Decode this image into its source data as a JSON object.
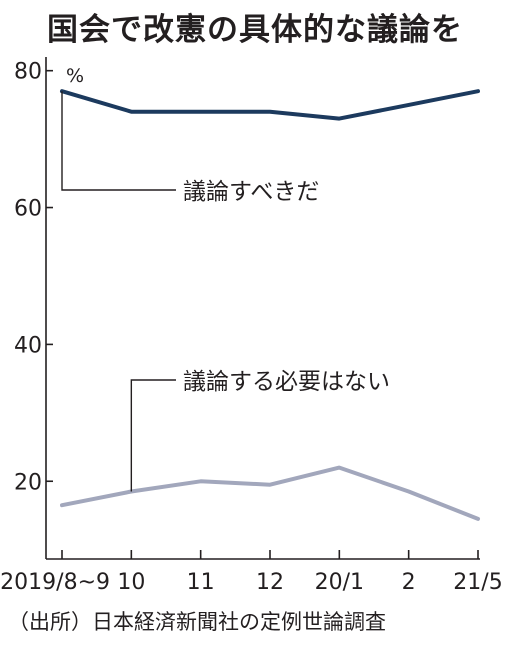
{
  "title": "国会で改憲の具体的な議論を",
  "source": "（出所）日本経済新聞社の定例世論調査",
  "chart_data": {
    "type": "line",
    "title": "国会で改憲の具体的な議論を",
    "unit": "%",
    "x": [
      "2019/8~9",
      "10",
      "11",
      "12",
      "20/1",
      "2",
      "21/5"
    ],
    "ylim": [
      12,
      82
    ],
    "yticks": [
      20,
      40,
      60,
      80
    ],
    "grid": false,
    "series": [
      {
        "name": "議論すべきだ",
        "values": [
          77,
          74,
          74,
          74,
          73,
          75,
          77
        ],
        "color": "#1c3a5e"
      },
      {
        "name": "議論する必要はない",
        "values": [
          16.5,
          18.5,
          20,
          19.5,
          22,
          18.5,
          14.5
        ],
        "color": "#a2a7bc"
      }
    ]
  }
}
